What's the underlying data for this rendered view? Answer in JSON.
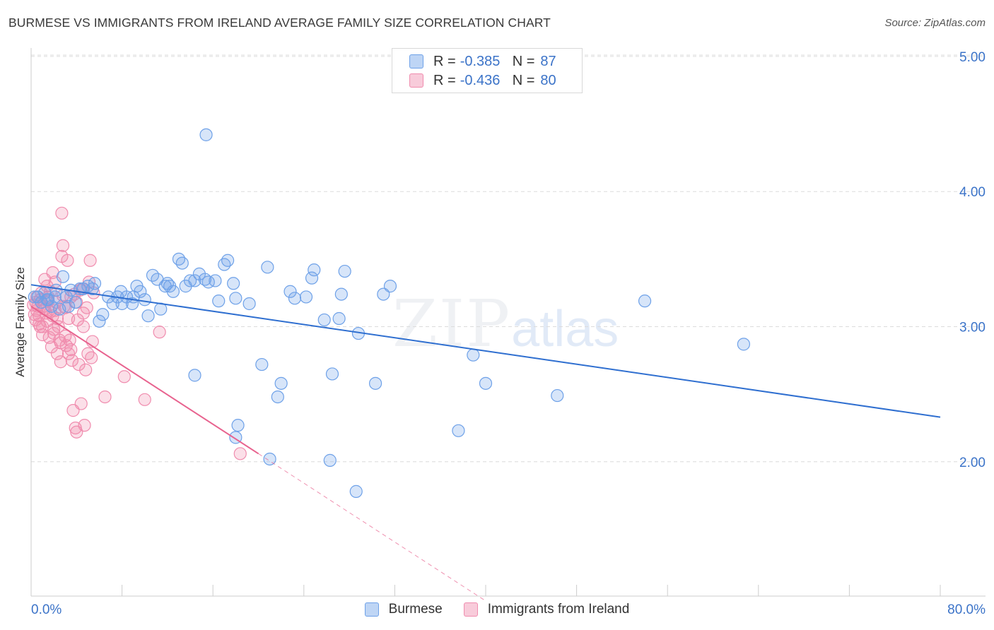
{
  "header": {
    "title": "BURMESE VS IMMIGRANTS FROM IRELAND AVERAGE FAMILY SIZE CORRELATION CHART",
    "source": "Source: ZipAtlas.com"
  },
  "watermark": {
    "zip": "ZIP",
    "atlas": "atlas"
  },
  "legend": {
    "r_label": "R = ",
    "n_label": "N = ",
    "rows": [
      {
        "r": "-0.385",
        "n": "87",
        "color": "#6ea1e8"
      },
      {
        "r": "-0.436",
        "n": "80",
        "color": "#f08cae"
      }
    ]
  },
  "bottom_legend": [
    {
      "label": "Burmese",
      "color": "#6ea1e8"
    },
    {
      "label": "Immigrants from Ireland",
      "color": "#f08cae"
    }
  ],
  "chart_data": {
    "type": "scatter",
    "title": "BURMESE VS IMMIGRANTS FROM IRELAND AVERAGE FAMILY SIZE CORRELATION CHART",
    "xlabel": "",
    "ylabel": "Average Family Size",
    "xlim": [
      0,
      80
    ],
    "ylim": [
      1.0,
      5.1
    ],
    "x_tick_labels": [
      "0.0%",
      "80.0%"
    ],
    "y_ticks": [
      2.0,
      3.0,
      4.0,
      5.0
    ],
    "y_tick_labels": [
      "2.00",
      "3.00",
      "4.00",
      "5.00"
    ],
    "grid": "horizontal dashed",
    "legend_position": "top-center",
    "series": [
      {
        "name": "Burmese",
        "color": "#6ea1e8",
        "line_color": "#2f6fd0",
        "trend": {
          "x": [
            0,
            80
          ],
          "y": [
            3.31,
            2.33
          ]
        },
        "points": [
          [
            0.6,
            3.22
          ],
          [
            0.9,
            3.18
          ],
          [
            1.2,
            3.25
          ],
          [
            1.5,
            3.2
          ],
          [
            1.8,
            3.15
          ],
          [
            2.1,
            3.22
          ],
          [
            2.5,
            3.13
          ],
          [
            2.8,
            3.37
          ],
          [
            3.1,
            3.22
          ],
          [
            3.5,
            3.27
          ],
          [
            3.9,
            3.18
          ],
          [
            4.3,
            3.28
          ],
          [
            4.6,
            3.28
          ],
          [
            5.0,
            3.3
          ],
          [
            5.4,
            3.28
          ],
          [
            6.0,
            3.04
          ],
          [
            6.3,
            3.09
          ],
          [
            6.8,
            3.22
          ],
          [
            7.2,
            3.17
          ],
          [
            7.6,
            3.22
          ],
          [
            8.0,
            3.17
          ],
          [
            8.4,
            3.22
          ],
          [
            8.9,
            3.17
          ],
          [
            9.3,
            3.3
          ],
          [
            9.6,
            3.26
          ],
          [
            10.0,
            3.2
          ],
          [
            10.3,
            3.08
          ],
          [
            10.7,
            3.38
          ],
          [
            11.1,
            3.35
          ],
          [
            11.4,
            3.13
          ],
          [
            11.8,
            3.3
          ],
          [
            12.2,
            3.3
          ],
          [
            12.5,
            3.26
          ],
          [
            13.0,
            3.5
          ],
          [
            13.3,
            3.47
          ],
          [
            13.6,
            3.3
          ],
          [
            14.0,
            3.34
          ],
          [
            14.4,
            3.34
          ],
          [
            14.8,
            3.39
          ],
          [
            15.3,
            3.35
          ],
          [
            15.6,
            3.33
          ],
          [
            15.4,
            4.42
          ],
          [
            16.2,
            3.34
          ],
          [
            16.5,
            3.19
          ],
          [
            17.0,
            3.46
          ],
          [
            17.3,
            3.49
          ],
          [
            17.8,
            3.32
          ],
          [
            18.0,
            3.21
          ],
          [
            19.2,
            3.17
          ],
          [
            20.3,
            2.72
          ],
          [
            20.8,
            3.44
          ],
          [
            22.0,
            2.58
          ],
          [
            21.7,
            2.48
          ],
          [
            22.8,
            3.26
          ],
          [
            23.2,
            3.21
          ],
          [
            24.2,
            3.22
          ],
          [
            24.7,
            3.36
          ],
          [
            24.9,
            3.42
          ],
          [
            25.8,
            3.05
          ],
          [
            26.3,
            2.01
          ],
          [
            26.5,
            2.65
          ],
          [
            27.1,
            3.06
          ],
          [
            27.3,
            3.24
          ],
          [
            27.6,
            3.41
          ],
          [
            28.8,
            2.95
          ],
          [
            28.6,
            1.78
          ],
          [
            30.3,
            2.58
          ],
          [
            31.0,
            3.24
          ],
          [
            31.6,
            3.3
          ],
          [
            37.6,
            2.23
          ],
          [
            38.9,
            2.79
          ],
          [
            40.0,
            2.58
          ],
          [
            46.3,
            2.49
          ],
          [
            54.0,
            3.19
          ],
          [
            62.7,
            2.87
          ],
          [
            14.4,
            2.64
          ],
          [
            18.2,
            2.27
          ],
          [
            18.0,
            2.18
          ],
          [
            21.0,
            2.02
          ],
          [
            7.9,
            3.26
          ],
          [
            5.6,
            3.32
          ],
          [
            2.2,
            3.27
          ],
          [
            3.3,
            3.15
          ],
          [
            1.4,
            3.2
          ],
          [
            9.0,
            3.22
          ],
          [
            12.0,
            3.32
          ],
          [
            0.3,
            3.22
          ]
        ]
      },
      {
        "name": "Immigrants from Ireland",
        "color": "#f08cae",
        "line_color": "#e8638f",
        "trend": {
          "x": [
            0,
            20
          ],
          "y": [
            3.15,
            2.06
          ]
        },
        "trend_dashed": {
          "x": [
            20,
            40
          ],
          "y": [
            2.06,
            0.97
          ]
        },
        "points": [
          [
            0.2,
            3.16
          ],
          [
            0.4,
            3.05
          ],
          [
            0.5,
            3.12
          ],
          [
            0.7,
            3.08
          ],
          [
            0.8,
            3.2
          ],
          [
            1.0,
            3.0
          ],
          [
            1.1,
            3.15
          ],
          [
            1.3,
            3.1
          ],
          [
            1.4,
            3.04
          ],
          [
            1.5,
            3.22
          ],
          [
            1.6,
            2.92
          ],
          [
            1.7,
            3.26
          ],
          [
            1.8,
            2.85
          ],
          [
            1.9,
            3.08
          ],
          [
            2.0,
            2.95
          ],
          [
            2.1,
            3.33
          ],
          [
            2.2,
            3.18
          ],
          [
            2.3,
            2.8
          ],
          [
            2.4,
            3.0
          ],
          [
            2.5,
            2.9
          ],
          [
            2.6,
            2.74
          ],
          [
            2.7,
            3.52
          ],
          [
            2.8,
            3.6
          ],
          [
            2.9,
            3.15
          ],
          [
            3.0,
            2.93
          ],
          [
            3.1,
            2.86
          ],
          [
            3.2,
            3.49
          ],
          [
            3.3,
            2.8
          ],
          [
            3.4,
            2.9
          ],
          [
            3.5,
            3.22
          ],
          [
            3.6,
            2.75
          ],
          [
            3.7,
            2.38
          ],
          [
            3.8,
            3.24
          ],
          [
            3.9,
            2.25
          ],
          [
            4.0,
            2.22
          ],
          [
            4.1,
            3.05
          ],
          [
            4.2,
            2.72
          ],
          [
            4.3,
            3.27
          ],
          [
            4.4,
            2.43
          ],
          [
            4.5,
            3.28
          ],
          [
            4.6,
            3.0
          ],
          [
            4.7,
            2.27
          ],
          [
            4.8,
            2.68
          ],
          [
            4.9,
            3.14
          ],
          [
            5.0,
            2.8
          ],
          [
            5.1,
            3.33
          ],
          [
            5.2,
            3.49
          ],
          [
            5.3,
            2.77
          ],
          [
            5.4,
            2.89
          ],
          [
            5.5,
            3.25
          ],
          [
            2.7,
            3.84
          ],
          [
            6.5,
            2.48
          ],
          [
            8.2,
            2.63
          ],
          [
            10.0,
            2.46
          ],
          [
            11.3,
            2.96
          ],
          [
            18.4,
            2.06
          ],
          [
            0.6,
            3.15
          ],
          [
            0.9,
            3.25
          ],
          [
            1.2,
            3.13
          ],
          [
            0.3,
            3.09
          ],
          [
            1.5,
            3.19
          ],
          [
            0.7,
            3.02
          ],
          [
            2.0,
            2.98
          ],
          [
            1.9,
            3.4
          ],
          [
            2.6,
            2.88
          ],
          [
            3.0,
            3.14
          ],
          [
            1.2,
            3.35
          ],
          [
            0.5,
            3.22
          ],
          [
            1.7,
            3.11
          ],
          [
            2.3,
            3.06
          ],
          [
            4.0,
            3.18
          ],
          [
            1.0,
            2.94
          ],
          [
            3.5,
            2.83
          ],
          [
            2.8,
            3.23
          ],
          [
            0.8,
            3.0
          ],
          [
            1.4,
            3.3
          ],
          [
            2.1,
            3.12
          ],
          [
            0.4,
            3.18
          ],
          [
            3.3,
            3.06
          ],
          [
            4.6,
            3.1
          ]
        ]
      }
    ]
  }
}
